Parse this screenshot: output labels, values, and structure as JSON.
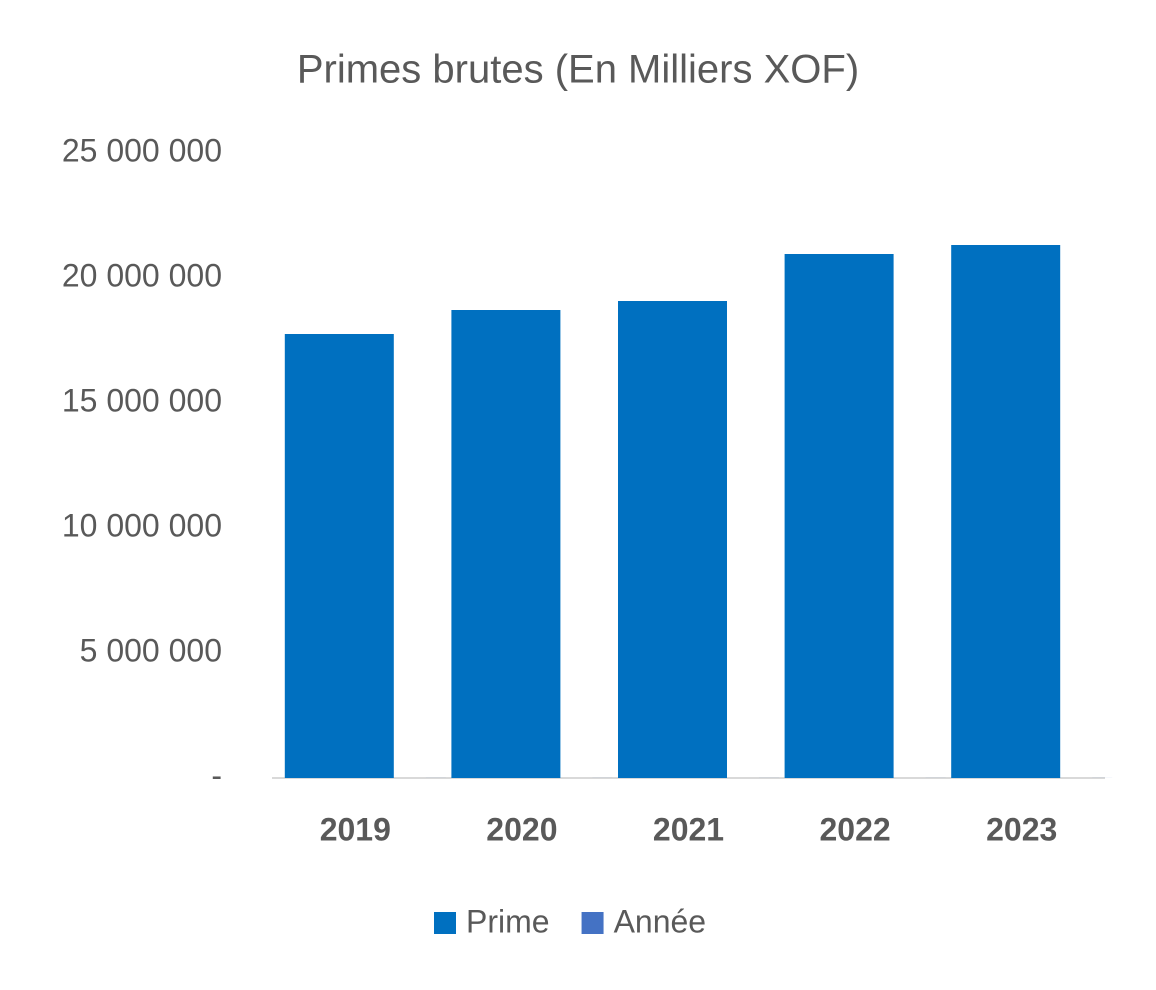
{
  "chart_data": {
    "type": "bar",
    "title": "Primes brutes (En Milliers XOF)",
    "categories": [
      "2019",
      "2020",
      "2021",
      "2022",
      "2023"
    ],
    "series": [
      {
        "name": "Prime",
        "color": "#0070c0",
        "values": [
          17760000,
          18720000,
          19080000,
          20960000,
          21320000
        ]
      },
      {
        "name": "Année",
        "color": "#4472c4",
        "values": [
          2019,
          2020,
          2021,
          2022,
          2023
        ]
      }
    ],
    "ylim": [
      0,
      25000000
    ],
    "yticks": [
      {
        "value": 0,
        "label": "-"
      },
      {
        "value": 5000000,
        "label": "5 000 000"
      },
      {
        "value": 10000000,
        "label": "10 000 000"
      },
      {
        "value": 15000000,
        "label": "15 000 000"
      },
      {
        "value": 20000000,
        "label": "20 000 000"
      },
      {
        "value": 25000000,
        "label": "25 000 000"
      }
    ],
    "grid": false,
    "legend": "bottom"
  }
}
